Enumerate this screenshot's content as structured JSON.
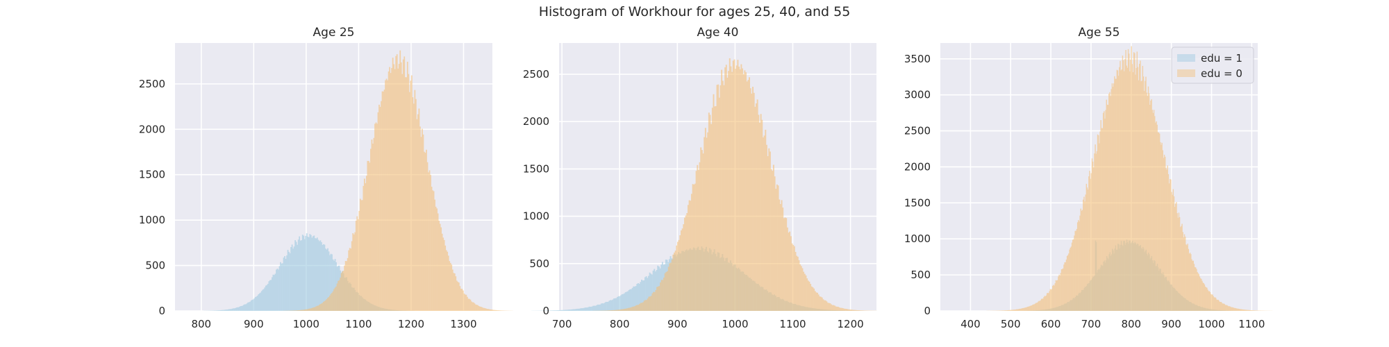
{
  "figure": {
    "title": "Histogram of Workhour for ages 25, 40, and 55"
  },
  "colors": {
    "plot_background": "#eaeaf2",
    "grid": "#ffffff",
    "edu1": "#9ecae1",
    "edu0": "#f5c07a",
    "overlap": "#c7bf8f"
  },
  "chart_data": [
    {
      "type": "bar",
      "title": "Age 25",
      "xlim": [
        750,
        1355
      ],
      "ylim": [
        0,
        2950
      ],
      "xticks": [
        800,
        900,
        1000,
        1100,
        1200,
        1300
      ],
      "yticks": [
        0,
        500,
        1000,
        1500,
        2000,
        2500
      ],
      "grid": true,
      "series": [
        {
          "name": "edu = 1",
          "color": "#9ecae1",
          "distribution": "normal",
          "mean": 1005,
          "sd": 55,
          "peak": 830,
          "x": [
            850,
            900,
            950,
            1000,
            1050,
            1100,
            1150
          ],
          "values": [
            50,
            250,
            560,
            820,
            500,
            80,
            5
          ]
        },
        {
          "name": "edu = 0",
          "color": "#f5c07a",
          "distribution": "normal",
          "mean": 1175,
          "sd": 55,
          "peak": 2760,
          "x": [
            1000,
            1050,
            1100,
            1150,
            1200,
            1250,
            1300
          ],
          "values": [
            20,
            200,
            900,
            2400,
            2650,
            1300,
            30
          ]
        }
      ]
    },
    {
      "type": "bar",
      "title": "Age 40",
      "xlim": [
        695,
        1245
      ],
      "ylim": [
        0,
        2830
      ],
      "xticks": [
        700,
        800,
        900,
        1000,
        1100,
        1200
      ],
      "yticks": [
        0,
        500,
        1000,
        1500,
        2000,
        2500
      ],
      "grid": true,
      "series": [
        {
          "name": "edu = 1",
          "color": "#9ecae1",
          "distribution": "normal",
          "mean": 935,
          "sd": 80,
          "peak": 660,
          "x": [
            750,
            800,
            850,
            900,
            950,
            1000,
            1050,
            1100,
            1150
          ],
          "values": [
            10,
            130,
            390,
            620,
            650,
            520,
            320,
            120,
            20
          ]
        },
        {
          "name": "edu = 0",
          "color": "#f5c07a",
          "distribution": "normal",
          "mean": 1000,
          "sd": 62,
          "peak": 2610,
          "x": [
            850,
            900,
            950,
            1000,
            1050,
            1100,
            1150,
            1200
          ],
          "values": [
            130,
            620,
            1800,
            2600,
            1900,
            700,
            120,
            5
          ]
        }
      ]
    },
    {
      "type": "bar",
      "title": "Age 55",
      "xlim": [
        325,
        1115
      ],
      "ylim": [
        0,
        3720
      ],
      "xticks": [
        400,
        500,
        600,
        700,
        800,
        900,
        1000,
        1100
      ],
      "yticks": [
        0,
        500,
        1000,
        1500,
        2000,
        2500,
        3000,
        3500
      ],
      "grid": true,
      "legend": {
        "placement": "upper-right",
        "entries": [
          "edu = 1",
          "edu = 0"
        ]
      },
      "series": [
        {
          "name": "edu = 1",
          "color": "#9ecae1",
          "distribution": "normal",
          "mean": 795,
          "sd": 75,
          "peak": 960,
          "spike_x": 712,
          "spike_value": 960,
          "x": [
            600,
            650,
            700,
            750,
            800,
            850,
            900,
            950,
            1000
          ],
          "values": [
            20,
            200,
            700,
            800,
            950,
            820,
            450,
            150,
            20
          ]
        },
        {
          "name": "edu = 0",
          "color": "#f5c07a",
          "distribution": "normal",
          "mean": 795,
          "sd": 88,
          "peak": 3500,
          "x": [
            550,
            600,
            650,
            700,
            750,
            800,
            850,
            900,
            950,
            1000
          ],
          "values": [
            60,
            300,
            1100,
            2300,
            3100,
            3500,
            2800,
            1500,
            500,
            100
          ]
        }
      ]
    }
  ]
}
